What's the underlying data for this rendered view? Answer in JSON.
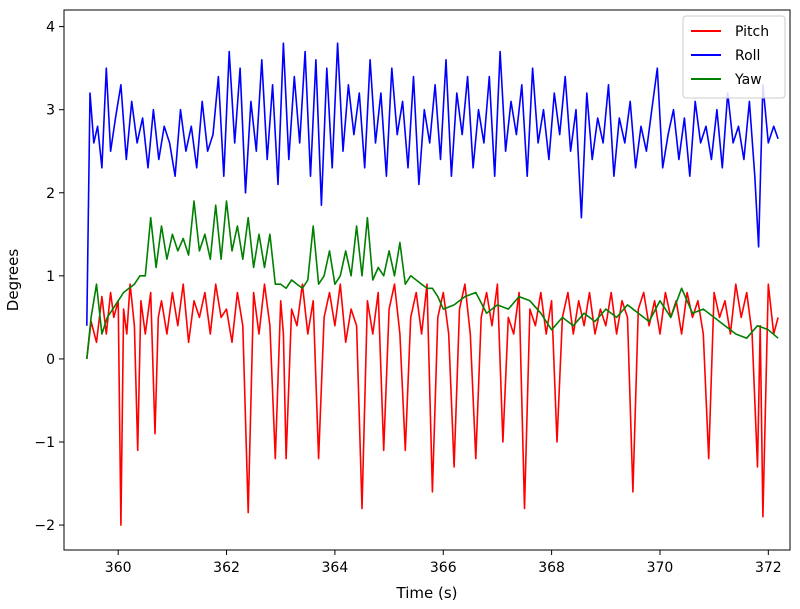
{
  "chart_data": {
    "type": "line",
    "title": "",
    "xlabel": "Time (s)",
    "ylabel": "Degrees",
    "xlim": [
      359.0,
      372.4
    ],
    "ylim": [
      -2.3,
      4.2
    ],
    "xticks": [
      360,
      362,
      364,
      366,
      368,
      370,
      372
    ],
    "yticks": [
      -2,
      -1,
      0,
      1,
      2,
      3,
      4
    ],
    "xtick_labels": [
      "360",
      "362",
      "364",
      "366",
      "368",
      "370",
      "372"
    ],
    "ytick_labels": [
      "−2",
      "−1",
      "0",
      "1",
      "2",
      "3",
      "4"
    ],
    "grid": false,
    "legend": {
      "position": "top-right",
      "entries": [
        "Pitch",
        "Roll",
        "Yaw"
      ]
    },
    "series": [
      {
        "name": "Pitch",
        "color": "#ff0000",
        "x": [
          359.42,
          359.5,
          359.6,
          359.7,
          359.78,
          359.86,
          359.92,
          360.0,
          360.05,
          360.1,
          360.16,
          360.22,
          360.3,
          360.36,
          360.42,
          360.5,
          360.6,
          360.68,
          360.74,
          360.8,
          360.9,
          361.0,
          361.1,
          361.2,
          361.3,
          361.4,
          361.5,
          361.6,
          361.7,
          361.8,
          361.9,
          362.0,
          362.1,
          362.2,
          362.3,
          362.4,
          362.5,
          362.6,
          362.7,
          362.8,
          362.9,
          363.0,
          363.05,
          363.1,
          363.2,
          363.3,
          363.4,
          363.5,
          363.6,
          363.7,
          363.8,
          363.9,
          364.0,
          364.1,
          364.2,
          364.3,
          364.4,
          364.5,
          364.6,
          364.7,
          364.8,
          364.9,
          365.0,
          365.1,
          365.2,
          365.3,
          365.4,
          365.5,
          365.6,
          365.7,
          365.8,
          365.9,
          366.0,
          366.1,
          366.2,
          366.3,
          366.4,
          366.5,
          366.6,
          366.7,
          366.8,
          366.9,
          367.0,
          367.1,
          367.2,
          367.3,
          367.4,
          367.5,
          367.6,
          367.7,
          367.8,
          367.9,
          368.0,
          368.1,
          368.2,
          368.3,
          368.4,
          368.5,
          368.6,
          368.7,
          368.8,
          368.9,
          369.0,
          369.1,
          369.2,
          369.3,
          369.4,
          369.5,
          369.6,
          369.7,
          369.8,
          369.9,
          370.0,
          370.1,
          370.2,
          370.3,
          370.4,
          370.5,
          370.6,
          370.7,
          370.8,
          370.9,
          371.0,
          371.1,
          371.2,
          371.3,
          371.4,
          371.5,
          371.6,
          371.7,
          371.8,
          371.85,
          371.9,
          372.0,
          372.1,
          372.18
        ],
        "values": [
          0.0,
          0.45,
          0.2,
          0.75,
          0.3,
          0.8,
          0.5,
          0.7,
          -2.0,
          0.6,
          0.3,
          0.9,
          0.4,
          -1.1,
          0.7,
          0.3,
          0.8,
          -0.9,
          0.5,
          0.7,
          0.3,
          0.8,
          0.4,
          0.9,
          0.2,
          0.7,
          0.5,
          0.8,
          0.3,
          0.9,
          0.5,
          0.6,
          0.2,
          0.8,
          0.4,
          -1.85,
          0.8,
          0.3,
          0.9,
          0.4,
          -1.2,
          0.7,
          0.3,
          -1.2,
          0.6,
          0.4,
          0.9,
          0.3,
          0.7,
          -1.2,
          0.5,
          0.8,
          0.4,
          0.9,
          0.2,
          0.6,
          0.4,
          -1.8,
          0.7,
          0.3,
          0.8,
          -1.1,
          0.6,
          0.9,
          0.3,
          -1.1,
          0.5,
          0.8,
          0.3,
          0.9,
          -1.6,
          0.5,
          0.8,
          0.3,
          -1.3,
          0.6,
          0.9,
          0.3,
          -1.2,
          0.5,
          0.8,
          0.4,
          0.9,
          -1.0,
          0.5,
          0.3,
          0.8,
          -1.8,
          0.6,
          0.4,
          0.8,
          0.3,
          0.7,
          -1.0,
          0.5,
          0.8,
          0.3,
          0.7,
          0.4,
          0.8,
          0.3,
          0.6,
          0.4,
          0.8,
          0.3,
          0.7,
          0.5,
          -1.6,
          0.6,
          0.8,
          0.4,
          0.7,
          0.3,
          0.8,
          0.5,
          0.7,
          0.3,
          0.8,
          0.5,
          0.7,
          0.3,
          -1.2,
          0.8,
          0.5,
          0.7,
          0.3,
          0.9,
          0.5,
          0.8,
          0.3,
          -1.3,
          0.4,
          -1.9,
          0.9,
          0.3,
          0.5
        ]
      },
      {
        "name": "Roll",
        "color": "#0000ff",
        "x": [
          359.42,
          359.48,
          359.55,
          359.62,
          359.7,
          359.78,
          359.86,
          359.95,
          360.05,
          360.15,
          360.25,
          360.35,
          360.45,
          360.55,
          360.65,
          360.75,
          360.85,
          360.95,
          361.05,
          361.15,
          361.25,
          361.35,
          361.45,
          361.55,
          361.65,
          361.75,
          361.85,
          361.95,
          362.05,
          362.15,
          362.25,
          362.35,
          362.45,
          362.55,
          362.65,
          362.75,
          362.85,
          362.95,
          363.05,
          363.15,
          363.25,
          363.35,
          363.45,
          363.55,
          363.65,
          363.75,
          363.85,
          363.95,
          364.05,
          364.15,
          364.25,
          364.35,
          364.45,
          364.55,
          364.65,
          364.75,
          364.85,
          364.95,
          365.05,
          365.15,
          365.25,
          365.35,
          365.45,
          365.55,
          365.65,
          365.75,
          365.85,
          365.95,
          366.05,
          366.15,
          366.25,
          366.35,
          366.45,
          366.55,
          366.65,
          366.75,
          366.85,
          366.95,
          367.05,
          367.15,
          367.25,
          367.35,
          367.45,
          367.55,
          367.65,
          367.75,
          367.85,
          367.95,
          368.05,
          368.15,
          368.25,
          368.35,
          368.45,
          368.55,
          368.65,
          368.75,
          368.85,
          368.95,
          369.05,
          369.15,
          369.25,
          369.35,
          369.45,
          369.55,
          369.65,
          369.75,
          369.85,
          369.95,
          370.05,
          370.15,
          370.25,
          370.35,
          370.45,
          370.55,
          370.65,
          370.75,
          370.85,
          370.95,
          371.05,
          371.15,
          371.25,
          371.35,
          371.45,
          371.55,
          371.65,
          371.75,
          371.82,
          371.9,
          372.0,
          372.1,
          372.18
        ],
        "values": [
          0.4,
          3.2,
          2.6,
          2.8,
          2.3,
          3.5,
          2.5,
          2.9,
          3.3,
          2.4,
          3.1,
          2.6,
          2.9,
          2.3,
          3.0,
          2.4,
          2.8,
          2.6,
          2.2,
          3.0,
          2.5,
          2.8,
          2.3,
          3.1,
          2.5,
          2.7,
          3.4,
          2.2,
          3.7,
          2.6,
          3.5,
          2.0,
          3.1,
          2.5,
          3.6,
          2.4,
          3.3,
          2.1,
          3.8,
          2.4,
          3.4,
          2.6,
          3.7,
          2.2,
          3.6,
          1.85,
          3.5,
          2.3,
          3.8,
          2.5,
          3.3,
          2.7,
          3.2,
          2.3,
          3.6,
          2.6,
          3.2,
          2.2,
          3.5,
          2.7,
          3.1,
          2.3,
          3.4,
          2.1,
          3.0,
          2.6,
          3.3,
          2.4,
          3.6,
          2.2,
          3.2,
          2.7,
          3.4,
          2.3,
          3.0,
          2.6,
          3.4,
          2.2,
          3.7,
          2.5,
          3.1,
          2.7,
          3.3,
          2.2,
          3.5,
          2.6,
          3.0,
          2.4,
          3.2,
          2.7,
          3.4,
          2.5,
          3.0,
          1.7,
          3.2,
          2.4,
          2.9,
          2.6,
          3.3,
          2.2,
          2.9,
          2.6,
          3.1,
          2.3,
          2.8,
          2.5,
          3.0,
          3.5,
          2.3,
          2.7,
          3.0,
          2.4,
          2.9,
          2.2,
          3.1,
          2.6,
          2.8,
          2.4,
          3.0,
          2.3,
          3.2,
          2.6,
          2.8,
          2.4,
          3.1,
          2.2,
          1.35,
          3.3,
          2.6,
          2.8,
          2.65
        ]
      },
      {
        "name": "Yaw",
        "color": "#008000",
        "x": [
          359.42,
          359.5,
          359.6,
          359.7,
          359.8,
          359.9,
          360.0,
          360.1,
          360.2,
          360.3,
          360.4,
          360.5,
          360.6,
          360.7,
          360.8,
          360.9,
          361.0,
          361.1,
          361.2,
          361.3,
          361.4,
          361.5,
          361.6,
          361.7,
          361.8,
          361.9,
          362.0,
          362.1,
          362.2,
          362.3,
          362.4,
          362.5,
          362.6,
          362.7,
          362.8,
          362.9,
          363.0,
          363.1,
          363.2,
          363.3,
          363.4,
          363.5,
          363.6,
          363.7,
          363.8,
          363.9,
          364.0,
          364.1,
          364.2,
          364.3,
          364.4,
          364.5,
          364.6,
          364.7,
          364.8,
          364.9,
          365.0,
          365.1,
          365.2,
          365.3,
          365.4,
          365.5,
          365.6,
          365.7,
          365.8,
          365.9,
          366.0,
          366.2,
          366.4,
          366.6,
          366.8,
          367.0,
          367.2,
          367.4,
          367.6,
          367.8,
          368.0,
          368.2,
          368.4,
          368.6,
          368.8,
          369.0,
          369.2,
          369.4,
          369.6,
          369.8,
          370.0,
          370.2,
          370.4,
          370.6,
          370.8,
          371.0,
          371.2,
          371.4,
          371.6,
          371.8,
          372.0,
          372.18
        ],
        "values": [
          0.0,
          0.5,
          0.9,
          0.3,
          0.5,
          0.6,
          0.7,
          0.8,
          0.85,
          0.9,
          1.0,
          1.0,
          1.7,
          1.1,
          1.6,
          1.2,
          1.5,
          1.3,
          1.45,
          1.25,
          1.9,
          1.3,
          1.5,
          1.2,
          1.85,
          1.2,
          1.9,
          1.3,
          1.6,
          1.2,
          1.7,
          1.1,
          1.5,
          1.1,
          1.5,
          0.9,
          0.9,
          0.85,
          0.95,
          0.9,
          0.85,
          0.95,
          1.6,
          0.9,
          1.0,
          1.3,
          0.9,
          1.0,
          1.3,
          1.0,
          1.6,
          1.0,
          1.7,
          0.95,
          1.1,
          1.0,
          1.3,
          1.0,
          1.4,
          0.9,
          1.0,
          0.95,
          0.9,
          0.85,
          0.85,
          0.75,
          0.6,
          0.65,
          0.75,
          0.8,
          0.55,
          0.65,
          0.6,
          0.75,
          0.7,
          0.55,
          0.35,
          0.5,
          0.4,
          0.55,
          0.45,
          0.6,
          0.5,
          0.65,
          0.55,
          0.45,
          0.7,
          0.5,
          0.85,
          0.55,
          0.6,
          0.5,
          0.4,
          0.3,
          0.25,
          0.4,
          0.35,
          0.25
        ]
      }
    ]
  }
}
